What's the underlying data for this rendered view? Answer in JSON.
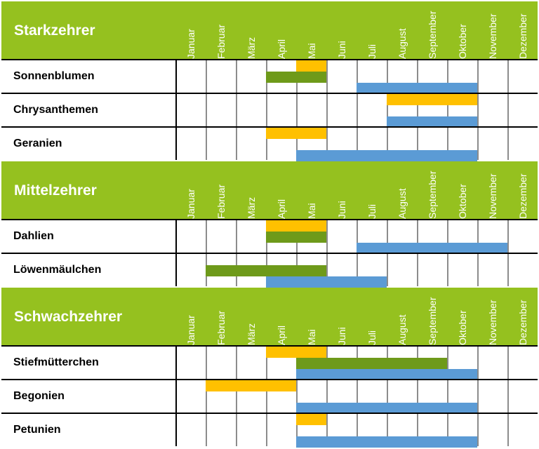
{
  "months": [
    "Januar",
    "Februar",
    "März",
    "April",
    "Mai",
    "Juni",
    "Juli",
    "August",
    "September",
    "Oktober",
    "November",
    "Dezember"
  ],
  "colors": {
    "header": "#95c11f",
    "sow": "#ffc000",
    "plant": "#6e9a1a",
    "bloom": "#5b9bd5"
  },
  "groups": [
    {
      "title": "Starkzehrer",
      "plants": [
        {
          "name": "Sonnenblumen",
          "orange": [
            5
          ],
          "green": [
            4,
            5
          ],
          "blue": [
            7,
            8,
            9,
            10
          ]
        },
        {
          "name": "Chrysanthemen",
          "orange": [
            8,
            9,
            10
          ],
          "green": [],
          "blue": [
            8,
            9,
            10
          ]
        },
        {
          "name": "Geranien",
          "orange": [
            4,
            5
          ],
          "green": [],
          "blue": [
            5,
            6,
            7,
            8,
            9,
            10
          ]
        }
      ]
    },
    {
      "title": "Mittelzehrer",
      "plants": [
        {
          "name": "Dahlien",
          "orange": [
            4,
            5
          ],
          "green": [
            4,
            5
          ],
          "blue": [
            7,
            8,
            9,
            10,
            11
          ]
        },
        {
          "name": "Löwenmäulchen",
          "orange": [],
          "green": [
            2,
            3,
            4,
            5
          ],
          "blue": [
            4,
            5,
            6,
            7
          ]
        }
      ]
    },
    {
      "title": "Schwachzehrer",
      "plants": [
        {
          "name": "Stiefmütterchen",
          "orange": [
            4,
            5
          ],
          "green": [
            5,
            6,
            7,
            8,
            9
          ],
          "blue": [
            5,
            6,
            7,
            8,
            9,
            10
          ]
        },
        {
          "name": "Begonien",
          "orange": [
            2,
            3,
            4
          ],
          "green": [],
          "blue": [
            5,
            6,
            7,
            8,
            9,
            10
          ]
        },
        {
          "name": "Petunien",
          "orange": [
            5
          ],
          "green": [],
          "blue": [
            5,
            6,
            7,
            8,
            9,
            10
          ]
        }
      ]
    }
  ]
}
